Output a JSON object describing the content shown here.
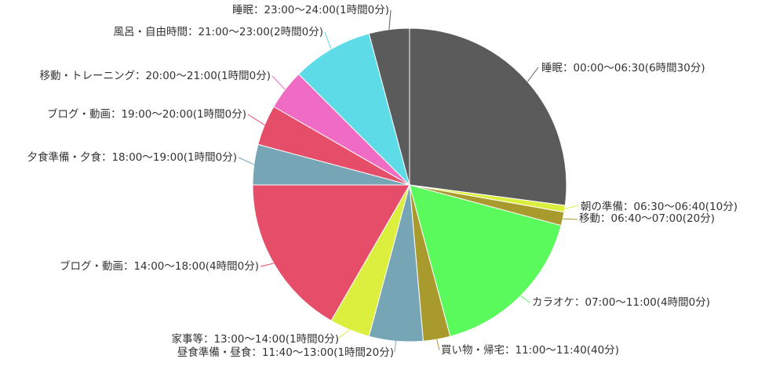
{
  "chart_data": {
    "type": "pie",
    "title": "",
    "start_angle_deg": 0,
    "direction": "clockwise",
    "slices": [
      {
        "label": "睡眠：00:00～06:30(6時間30分)",
        "minutes": 390,
        "color": "#5b5b5b"
      },
      {
        "label": "朝の準備：06:30～06:40(10分)",
        "minutes": 10,
        "color": "#dcef3f"
      },
      {
        "label": "移動：06:40～07:00(20分)",
        "minutes": 20,
        "color": "#a89a2c"
      },
      {
        "label": "カラオケ：07:00～11:00(4時間0分)",
        "minutes": 240,
        "color": "#5afa5c"
      },
      {
        "label": "買い物・帰宅：11:00～11:40(40分)",
        "minutes": 40,
        "color": "#a89a2c"
      },
      {
        "label": "昼食準備・昼食：11:40～13:00(1時間20分)",
        "minutes": 80,
        "color": "#76a5b5"
      },
      {
        "label": "家事等：13:00～14:00(1時間0分)",
        "minutes": 60,
        "color": "#dcef3f"
      },
      {
        "label": "ブログ・動画：14:00～18:00(4時間0分)",
        "minutes": 240,
        "color": "#e54d68"
      },
      {
        "label": "夕食準備・夕食：18:00～19:00(1時間0分)",
        "minutes": 60,
        "color": "#76a5b5"
      },
      {
        "label": "ブログ・動画：19:00～20:00(1時間0分)",
        "minutes": 60,
        "color": "#e54d68"
      },
      {
        "label": "移動・トレーニング：20:00～21:00(1時間0分)",
        "minutes": 60,
        "color": "#ef6bc4"
      },
      {
        "label": "風呂・自由時間：21:00～23:00(2時間0分)",
        "minutes": 120,
        "color": "#5ddbe6"
      },
      {
        "label": "睡眠：23:00～24:00(1時間0分)",
        "minutes": 60,
        "color": "#5b5b5b"
      }
    ]
  }
}
